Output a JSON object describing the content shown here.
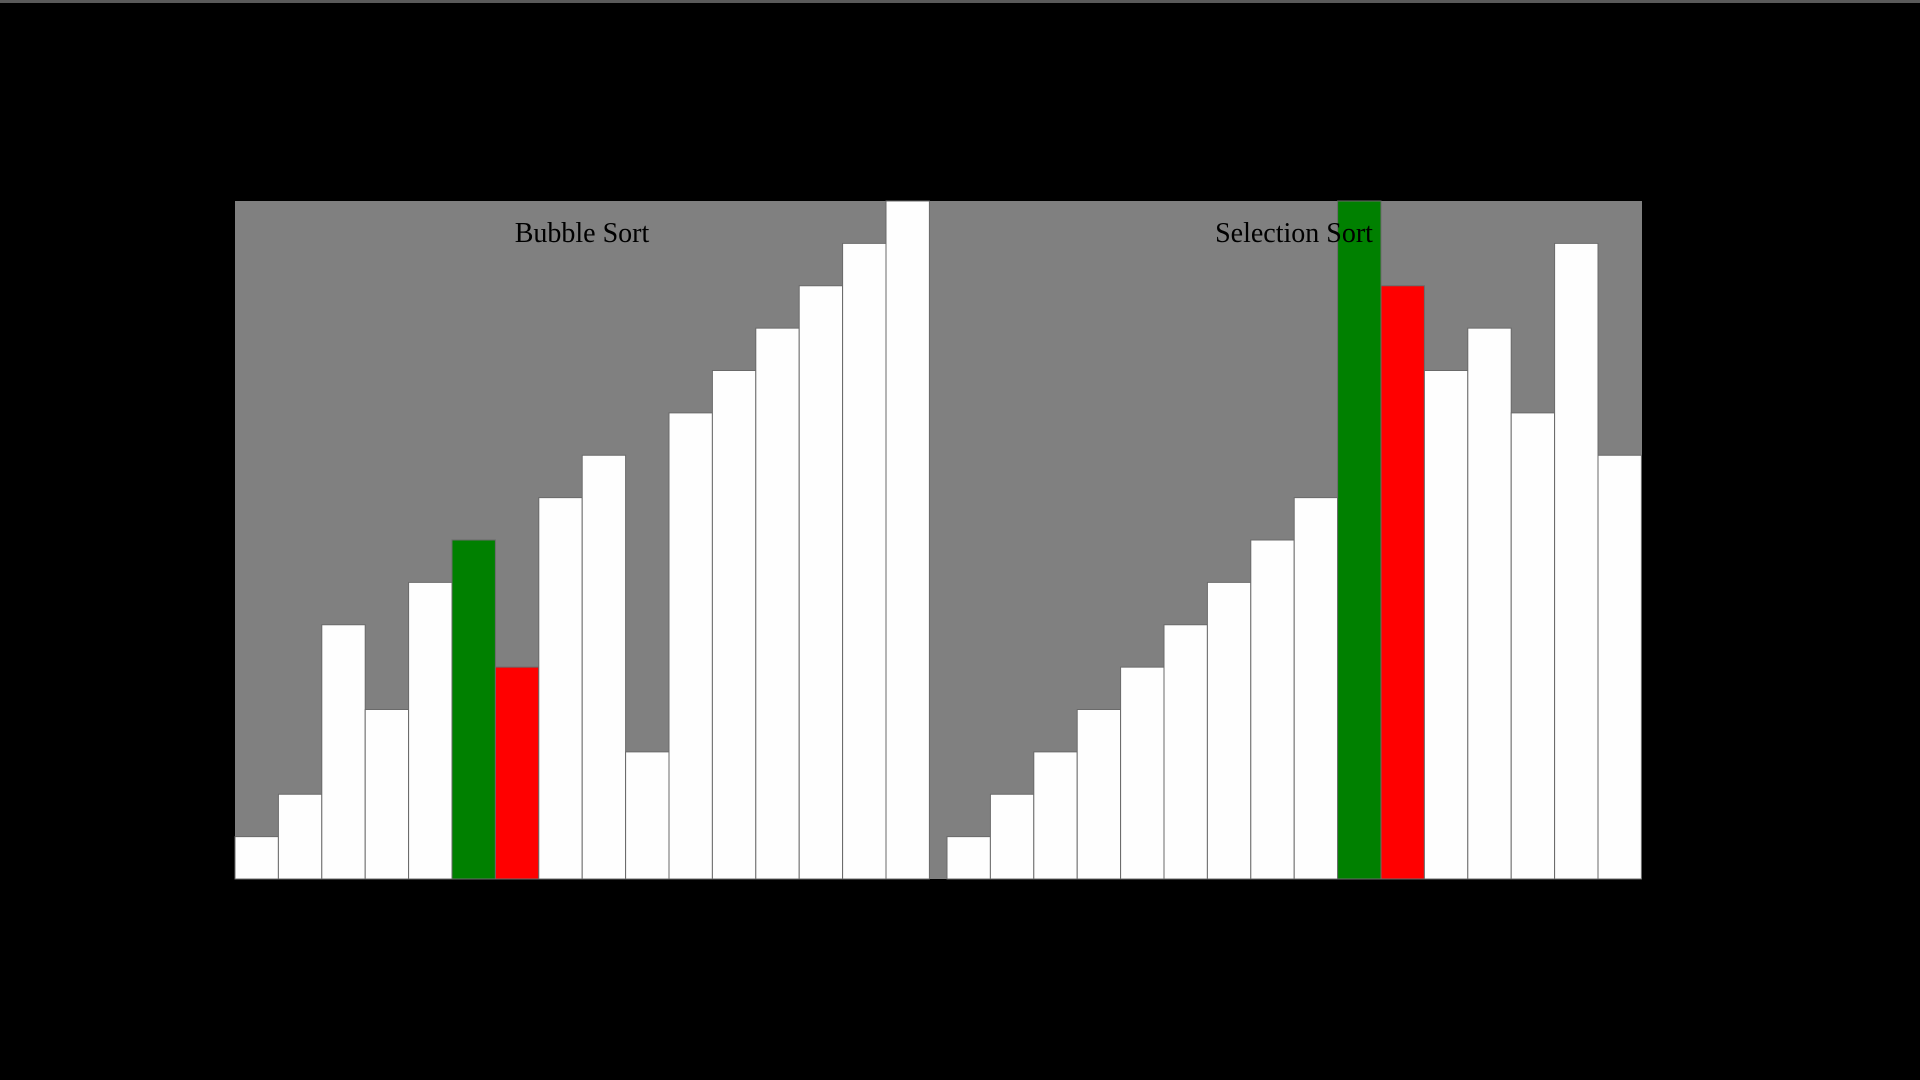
{
  "colors": {
    "page_background": "#000000",
    "panel_background": "#808080",
    "bar_default": "#fefefe",
    "bar_compare": "#008000",
    "bar_swap": "#ff0000",
    "bar_outline": "#6a6a6a"
  },
  "panels": [
    {
      "title": "Bubble Sort",
      "chart_data": {
        "type": "bar",
        "max_value": 16,
        "values": [
          1,
          2,
          6,
          4,
          7,
          8,
          5,
          9,
          10,
          3,
          11,
          12,
          13,
          14,
          15,
          16
        ],
        "highlight_compare": [
          5
        ],
        "highlight_swap": [
          6
        ]
      }
    },
    {
      "title": "Selection Sort",
      "chart_data": {
        "type": "bar",
        "max_value": 16,
        "values": [
          1,
          2,
          3,
          4,
          5,
          6,
          7,
          8,
          9,
          16,
          14,
          12,
          13,
          11,
          15,
          10
        ],
        "highlight_compare": [
          9
        ],
        "highlight_swap": [
          10
        ]
      }
    }
  ]
}
